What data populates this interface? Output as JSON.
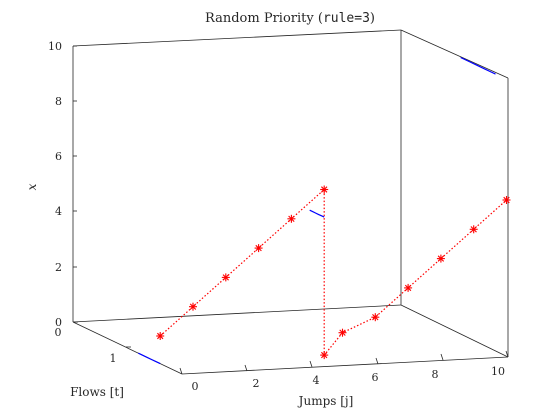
{
  "chart_data": {
    "type": "line",
    "title_prefix": "Random Priority (",
    "title_code": "rule=3",
    "title_suffix": ")",
    "xlabel": "Jumps [j]",
    "ylabel": "Flows [t]",
    "zlabel": "x",
    "xlim": [
      0,
      10
    ],
    "ylim": [
      0,
      1.5
    ],
    "zlim": [
      0,
      10
    ],
    "x_ticks": [
      "0",
      "2",
      "4",
      "6",
      "8",
      "10"
    ],
    "y_ticks": [
      "0",
      "1"
    ],
    "z_ticks": [
      "0",
      "2",
      "4",
      "6",
      "8",
      "10"
    ],
    "colors": {
      "flow": "#0000ff",
      "jump": "#ff0000",
      "axis": "#262626"
    },
    "flows": [
      {
        "j": 0,
        "points": [
          [
            0,
            0.9
          ],
          [
            0,
            0.96
          ],
          [
            0,
            1.02
          ],
          [
            0,
            1.08
          ],
          [
            0,
            1.14
          ],
          [
            0,
            1.2
          ]
        ]
      },
      {
        "j": 5,
        "points": [
          [
            5,
            1.2
          ],
          [
            5,
            1.17
          ],
          [
            5,
            1.12
          ],
          [
            5,
            1.08
          ],
          [
            5,
            1.04
          ],
          [
            5,
            1.0
          ]
        ]
      },
      {
        "j": 10,
        "points": [
          [
            10,
            1.3
          ],
          [
            10,
            1.24
          ],
          [
            10,
            1.15
          ],
          [
            10,
            1.05
          ],
          [
            10,
            0.95
          ],
          [
            10,
            0.82
          ]
        ]
      }
    ],
    "jumps": [
      {
        "j": 0,
        "t": 1.2,
        "x": 1.0
      },
      {
        "j": 1,
        "t": 1.2,
        "x": 2.0
      },
      {
        "j": 2,
        "t": 1.2,
        "x": 3.0
      },
      {
        "j": 3,
        "t": 1.2,
        "x": 4.0
      },
      {
        "j": 4,
        "t": 1.2,
        "x": 5.0
      },
      {
        "j": 5,
        "t": 1.2,
        "x": 6.0
      },
      {
        "j": 5,
        "t": 1.2,
        "x": 0.0
      },
      {
        "j": 6,
        "t": 1.0,
        "x": 0.5
      },
      {
        "j": 7,
        "t": 1.0,
        "x": 1.0
      },
      {
        "j": 8,
        "t": 1.0,
        "x": 2.0
      },
      {
        "j": 9,
        "t": 1.0,
        "x": 3.0
      },
      {
        "j": 10,
        "t": 1.0,
        "x": 4.0
      },
      {
        "j": 11,
        "t": 1.0,
        "x": 5.0
      }
    ]
  }
}
